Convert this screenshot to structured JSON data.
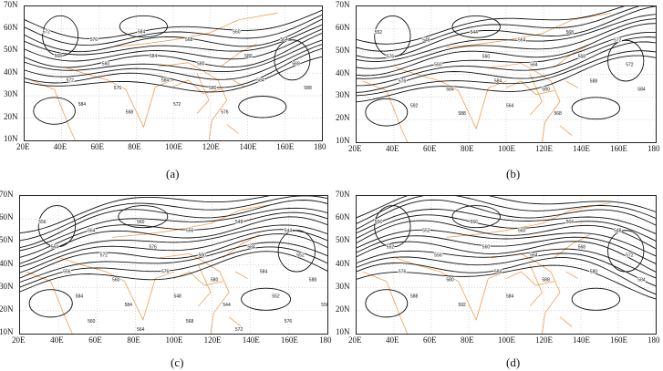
{
  "axes": {
    "lon_ticks": [
      "20E",
      "40E",
      "60E",
      "80E",
      "100E",
      "120E",
      "140E",
      "160E",
      "180"
    ],
    "lat_ticks": [
      "10N",
      "20N",
      "30N",
      "40N",
      "50N",
      "60N",
      "70N"
    ]
  },
  "colors": {
    "contour": "#111111",
    "coastline": "#f0903a",
    "grid": "#b0b0b0"
  },
  "panels": [
    {
      "label": "(a)",
      "contour_labels": [
        "572",
        "576",
        "584",
        "568",
        "560",
        "564",
        "568",
        "560",
        "584",
        "580",
        "580",
        "568",
        "572",
        "576",
        "584",
        "580",
        "584",
        "588",
        "584",
        "568",
        "572",
        "576"
      ]
    },
    {
      "label": "(b)",
      "contour_labels": [
        "552",
        "548",
        "544",
        "564",
        "568",
        "572",
        "576",
        "560",
        "560",
        "564",
        "568",
        "572",
        "576",
        "584",
        "584",
        "580",
        "588",
        "584",
        "592",
        "588",
        "564",
        "568"
      ]
    },
    {
      "label": "(c)",
      "contour_labels": [
        "556",
        "564",
        "560",
        "556",
        "548",
        "544",
        "564",
        "572",
        "576",
        "580",
        "584",
        "552",
        "556",
        "560",
        "576",
        "580",
        "584",
        "588",
        "584",
        "584",
        "548",
        "544",
        "552",
        "556",
        "560",
        "564",
        "568",
        "572",
        "576",
        "580",
        "588",
        "592",
        "592",
        "588"
      ]
    },
    {
      "label": "(d)",
      "contour_labels": [
        "556",
        "552",
        "556",
        "560",
        "564",
        "548",
        "552",
        "556",
        "560",
        "564",
        "568",
        "572",
        "576",
        "580",
        "584",
        "588",
        "580",
        "584",
        "588",
        "592",
        "584"
      ]
    }
  ]
}
